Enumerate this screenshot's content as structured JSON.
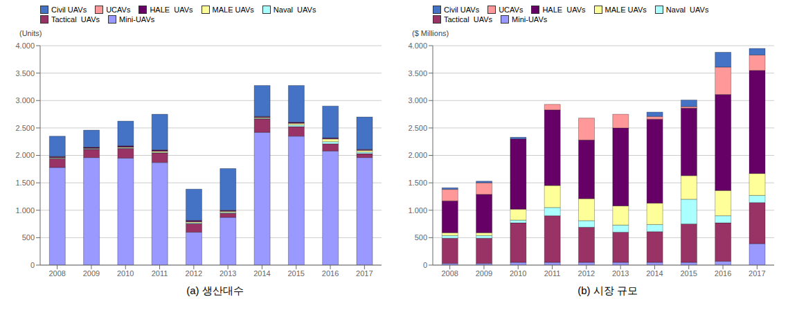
{
  "chart_data": [
    {
      "type": "bar",
      "stacked": true,
      "title": "(a)  생산대수",
      "ylabel": "(Units)",
      "categories": [
        "2008",
        "2009",
        "2010",
        "2011",
        "2012",
        "2013",
        "2014",
        "2015",
        "2016",
        "2017"
      ],
      "series": [
        {
          "name": "Mini-UAVs",
          "color": "#9999FF",
          "values": [
            1780,
            1960,
            1950,
            1870,
            600,
            870,
            2420,
            2350,
            2080,
            1960
          ]
        },
        {
          "name": "Tactical  UAVs",
          "color": "#993366",
          "values": [
            160,
            150,
            175,
            175,
            155,
            75,
            245,
            175,
            130,
            70
          ]
        },
        {
          "name": "Naval  UAVs",
          "color": "#AAFFFF",
          "values": [
            10,
            10,
            10,
            10,
            15,
            15,
            10,
            30,
            40,
            30
          ]
        },
        {
          "name": "MALE UAVs",
          "color": "#FFFF99",
          "values": [
            10,
            10,
            15,
            20,
            20,
            20,
            15,
            30,
            50,
            30
          ]
        },
        {
          "name": "HALE  UAVs",
          "color": "#660066",
          "values": [
            15,
            15,
            20,
            20,
            20,
            15,
            15,
            15,
            15,
            15
          ]
        },
        {
          "name": "UCAVs",
          "color": "#FF9999",
          "values": [
            5,
            5,
            5,
            5,
            5,
            5,
            5,
            5,
            5,
            5
          ]
        },
        {
          "name": "Civil UAVs",
          "color": "#4472C4",
          "values": [
            370,
            310,
            450,
            650,
            570,
            760,
            565,
            670,
            580,
            590
          ]
        }
      ],
      "ylim": [
        0,
        4000
      ],
      "yticks": [
        0,
        500,
        {
          "value": 1000,
          "label": "1.000"
        },
        {
          "value": 1500,
          "label": "1.500"
        },
        {
          "value": 2000,
          "label": "2.000"
        },
        {
          "value": 2500,
          "label": "2.500"
        },
        {
          "value": 3000,
          "label": "3.000"
        },
        {
          "value": 3500,
          "label": "3.500"
        },
        {
          "value": 4000,
          "label": "4.000"
        }
      ],
      "grid": true,
      "legend": "upper left"
    },
    {
      "type": "bar",
      "stacked": true,
      "title": "(b)  시장 규모",
      "ylabel": "($ Millions)",
      "categories": [
        "2008",
        "2009",
        "2010",
        "2011",
        "2012",
        "2013",
        "2014",
        "2015",
        "2016",
        "2017"
      ],
      "series": [
        {
          "name": "Mini-UAVs",
          "color": "#9999FF",
          "values": [
            30,
            30,
            50,
            50,
            50,
            50,
            50,
            50,
            70,
            390
          ]
        },
        {
          "name": "Tactical  UAVs",
          "color": "#993366",
          "values": [
            460,
            460,
            720,
            850,
            640,
            550,
            560,
            700,
            700,
            750
          ]
        },
        {
          "name": "Naval  UAVs",
          "color": "#AAFFFF",
          "values": [
            50,
            50,
            50,
            150,
            120,
            130,
            130,
            450,
            130,
            130
          ]
        },
        {
          "name": "MALE UAVs",
          "color": "#FFFF99",
          "values": [
            50,
            50,
            200,
            400,
            400,
            350,
            390,
            430,
            460,
            400
          ]
        },
        {
          "name": "HALE  UAVs",
          "color": "#660066",
          "values": [
            580,
            700,
            1280,
            1380,
            1070,
            1420,
            1530,
            1230,
            1750,
            1880
          ]
        },
        {
          "name": "UCAVs",
          "color": "#FF9999",
          "values": [
            210,
            210,
            0,
            100,
            400,
            250,
            50,
            30,
            500,
            280
          ]
        },
        {
          "name": "Civil UAVs",
          "color": "#4472C4",
          "values": [
            30,
            30,
            30,
            0,
            0,
            0,
            80,
            120,
            270,
            120
          ]
        }
      ],
      "ylim": [
        0,
        4000
      ],
      "yticks": [
        0,
        500,
        {
          "value": 1000,
          "label": "1.000"
        },
        {
          "value": 1500,
          "label": "1.500"
        },
        {
          "value": 2000,
          "label": "2.000"
        },
        {
          "value": 2500,
          "label": "2.500"
        },
        {
          "value": 3000,
          "label": "3.000"
        },
        {
          "value": 3500,
          "label": "3.500"
        },
        {
          "value": 4000,
          "label": "4.000"
        }
      ],
      "grid": true,
      "legend": "upper left"
    }
  ]
}
